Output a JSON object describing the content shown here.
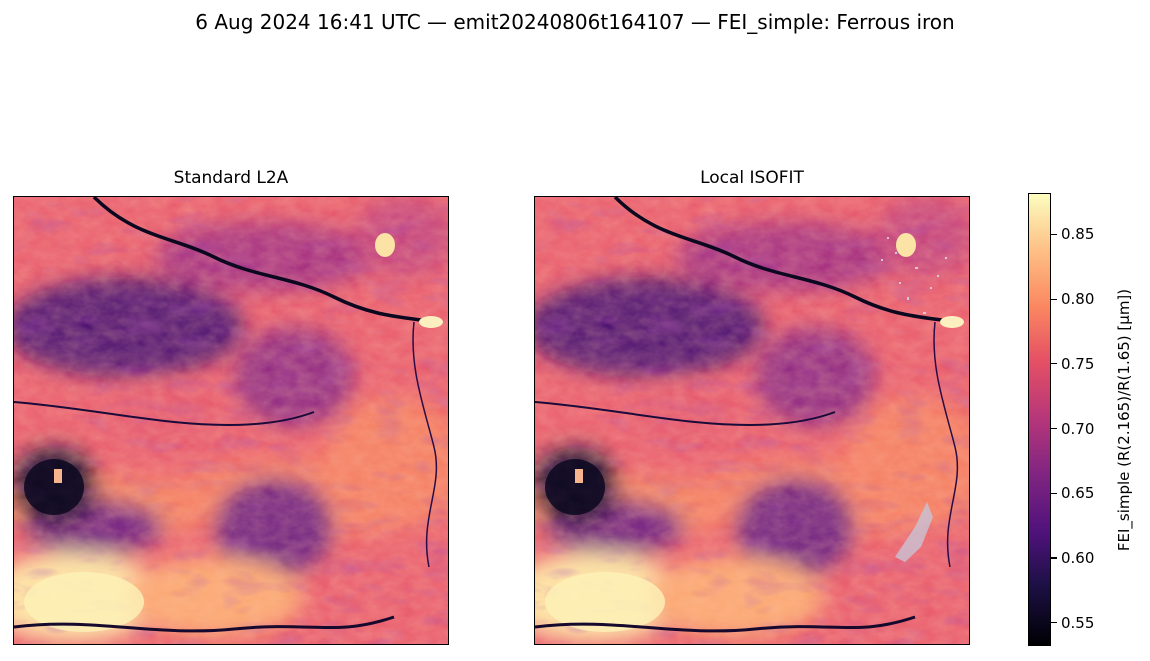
{
  "figure": {
    "suptitle": "6 Aug 2024 16:41 UTC — emit20240806t164107 — FEI_simple: Ferrous iron"
  },
  "panels": [
    {
      "title": "Standard L2A"
    },
    {
      "title": "Local ISOFIT"
    }
  ],
  "colorbar": {
    "label": "FEI_simple  (R(2.165)/R(1.65)  [µm])",
    "colormap": "magma",
    "range": [
      0.532,
      0.882
    ],
    "ticks": [
      "0.55",
      "0.60",
      "0.65",
      "0.70",
      "0.75",
      "0.80",
      "0.85"
    ],
    "tick_values": [
      0.55,
      0.6,
      0.65,
      0.7,
      0.75,
      0.8,
      0.85
    ]
  }
}
